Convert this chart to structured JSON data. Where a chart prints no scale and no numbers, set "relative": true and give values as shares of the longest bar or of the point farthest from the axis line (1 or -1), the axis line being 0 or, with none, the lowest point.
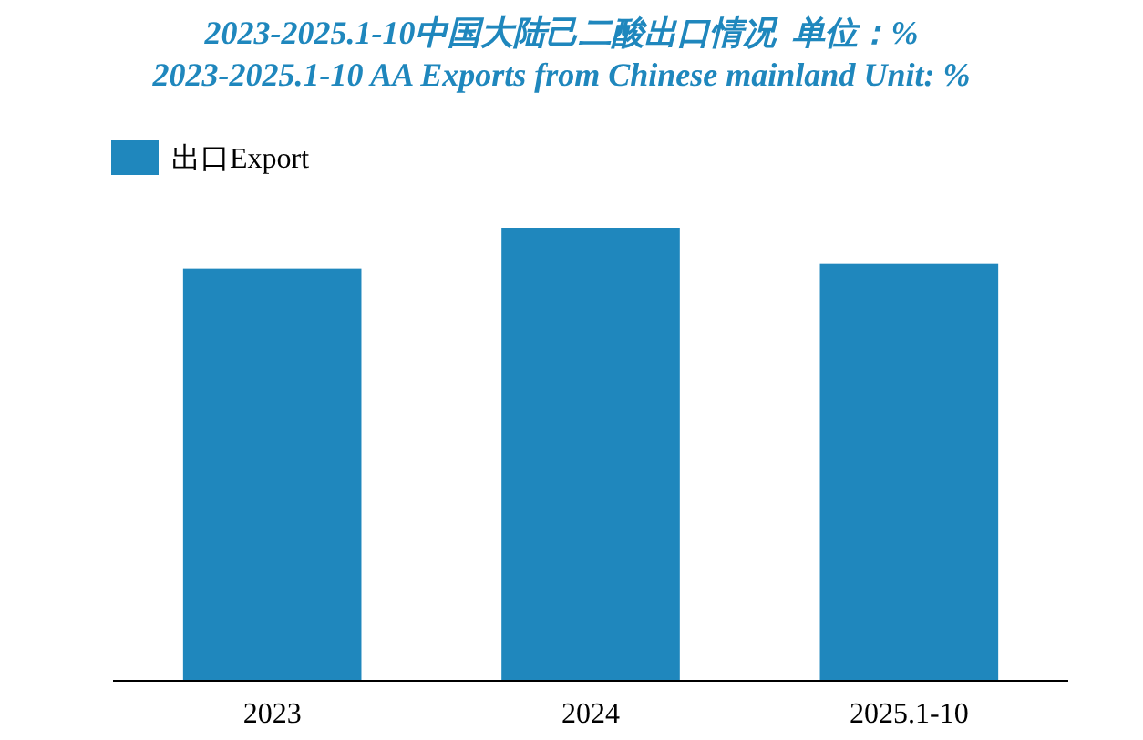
{
  "chart_data": {
    "type": "bar",
    "title": "2023-2025.1-10中国大陆己二酸出口情况  单位：%",
    "subtitle": "2023-2025.1-10 AA Exports from Chinese mainland Unit: %",
    "categories": [
      "2023",
      "2024",
      "2025.1-10"
    ],
    "series": [
      {
        "name": "出口Export",
        "color": "#1f87bd",
        "values": [
          0.91,
          1,
          0.92
        ]
      }
    ],
    "relative": true,
    "legend": "top left"
  }
}
